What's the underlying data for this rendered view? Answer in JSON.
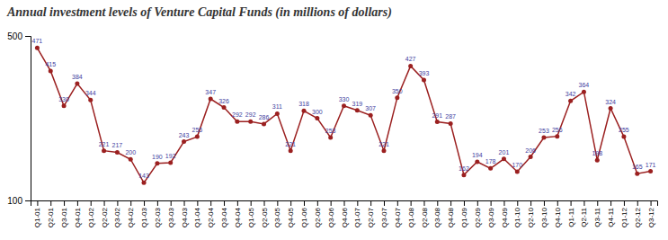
{
  "chart_data": {
    "type": "line",
    "title": "Annual investment levels of Venture Capital Funds (in millions of dollars)",
    "categories": [
      "Q1-01",
      "Q2-01",
      "Q3-01",
      "Q4-01",
      "Q1-02",
      "Q2-02",
      "Q3-02",
      "Q4-02",
      "Q1-03",
      "Q2-03",
      "Q3-03",
      "Q4-03",
      "Q1-04",
      "Q2-04",
      "Q3-04",
      "Q4-04",
      "Q1-05",
      "Q2-05",
      "Q3-05",
      "Q4-05",
      "Q1-06",
      "Q2-06",
      "Q3-06",
      "Q4-06",
      "Q1-07",
      "Q2-07",
      "Q3-07",
      "Q4-07",
      "Q1-08",
      "Q2-08",
      "Q3-08",
      "Q4-08",
      "Q1-09",
      "Q2-09",
      "Q3-09",
      "Q4-09",
      "Q1-10",
      "Q2-10",
      "Q3-10",
      "Q4-10",
      "Q1-11",
      "Q2-11",
      "Q3-11",
      "Q4-11",
      "Q1-12",
      "Q2-12",
      "Q3-12"
    ],
    "values": [
      471,
      415,
      330,
      384,
      344,
      221,
      217,
      200,
      143,
      190,
      192,
      243,
      255,
      347,
      326,
      292,
      292,
      286,
      311,
      221,
      318,
      300,
      253,
      330,
      319,
      307,
      221,
      350,
      427,
      393,
      291,
      287,
      162,
      194,
      178,
      201,
      170,
      206,
      253,
      256,
      342,
      364,
      198,
      324,
      255,
      165,
      171
    ],
    "color": "#9b2020",
    "marker": "circle",
    "ylim": [
      100,
      500
    ],
    "yticks": [
      100,
      500
    ],
    "grid": false,
    "data_labels": true
  }
}
